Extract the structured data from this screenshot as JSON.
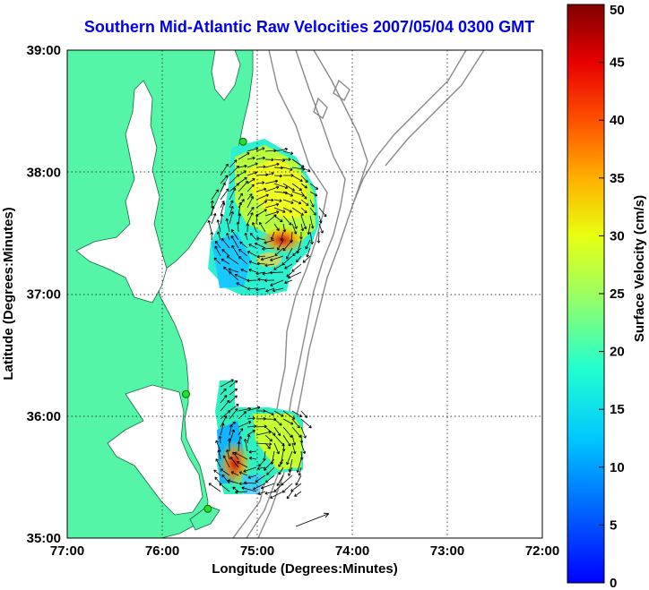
{
  "title": "Southern Mid-Atlantic Raw Velocities 2007/05/04 0300 GMT",
  "map": {
    "xlabel": "Longitude (Degrees:Minutes)",
    "ylabel": "Latitude (Degrees:Minutes)",
    "x_ticks": [
      "77:00",
      "76:00",
      "75:00",
      "74:00",
      "73:00",
      "72:00"
    ],
    "y_ticks": [
      "39:00",
      "38:00",
      "37:00",
      "36:00",
      "35:00"
    ],
    "lon_range": [
      -77,
      -72
    ],
    "lat_range": [
      35,
      39
    ],
    "land_color": "#55f5a8",
    "grid": "dotted",
    "stations": [
      {
        "lon": -75.15,
        "lat": 38.25
      },
      {
        "lon": -75.75,
        "lat": 36.18
      },
      {
        "lon": -75.52,
        "lat": 35.24
      }
    ],
    "coverage_regions": [
      {
        "name": "north",
        "lon": [
          -75.55,
          -74.55
        ],
        "lat": [
          36.9,
          38.3
        ]
      },
      {
        "name": "south",
        "lon": [
          -75.8,
          -74.5
        ],
        "lat": [
          35.3,
          36.5
        ]
      }
    ]
  },
  "colorbar": {
    "label": "Surface Velocity (cm/s)",
    "min": 0,
    "max": 50,
    "ticks": [
      "0",
      "5",
      "10",
      "15",
      "20",
      "25",
      "30",
      "35",
      "40",
      "45",
      "50"
    ],
    "colormap": "jet"
  }
}
